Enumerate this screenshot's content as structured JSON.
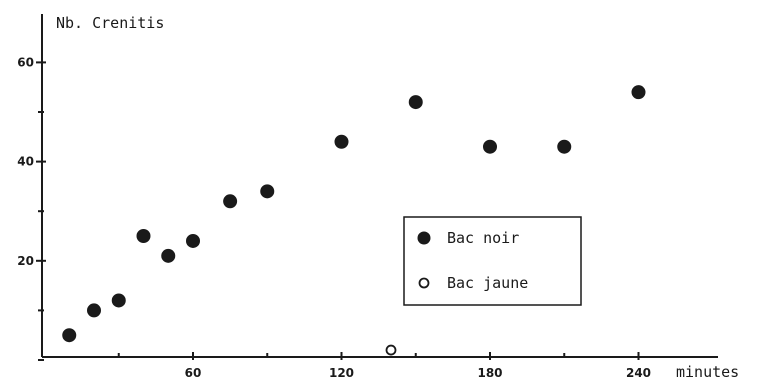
{
  "chart_data": {
    "type": "scatter",
    "ylabel": "Nb. Crenitis",
    "xlabel": "minutes",
    "xlim": [
      -30,
      262
    ],
    "ylim": [
      -20,
      70
    ],
    "x_ticks": [
      60,
      120,
      180,
      240
    ],
    "y_ticks": [
      20,
      40,
      60
    ],
    "x_minor_ticks": [
      30,
      90,
      150,
      210
    ],
    "y_minor_ticks": [
      0,
      10,
      30,
      50
    ],
    "grid": false,
    "legend_position": "center-right",
    "series": [
      {
        "name": "Bac noir",
        "marker": "filled-circle",
        "color": "#1a1a1a",
        "points": [
          {
            "x": 10,
            "y": 5
          },
          {
            "x": 20,
            "y": 10
          },
          {
            "x": 30,
            "y": 12
          },
          {
            "x": 40,
            "y": 25
          },
          {
            "x": 50,
            "y": 21
          },
          {
            "x": 60,
            "y": 24
          },
          {
            "x": 75,
            "y": 32
          },
          {
            "x": 90,
            "y": 34
          },
          {
            "x": 120,
            "y": 44
          },
          {
            "x": 150,
            "y": 52
          },
          {
            "x": 180,
            "y": 43
          },
          {
            "x": 210,
            "y": 43
          },
          {
            "x": 240,
            "y": 54
          }
        ]
      },
      {
        "name": "Bac jaune",
        "marker": "open-circle",
        "color": "#1a1a1a",
        "points": [
          {
            "x": 140,
            "y": 2
          }
        ]
      }
    ]
  }
}
